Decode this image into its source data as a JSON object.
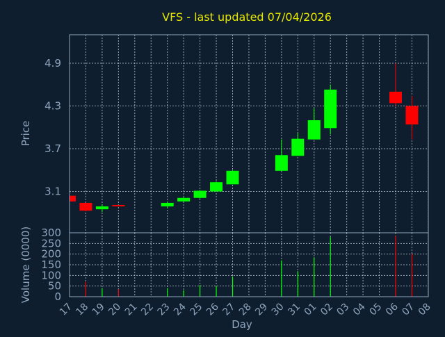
{
  "chart_data": {
    "type": "candlestick",
    "title": "VFS - last updated 07/04/2026",
    "xlabel": "Day",
    "price_panel": {
      "ylabel": "Price",
      "yticks": [
        "3.1",
        "3.7",
        "4.3",
        "4.9"
      ],
      "ylim": [
        2.52,
        5.3
      ],
      "grid": true
    },
    "volume_panel": {
      "ylabel": "Volume (0000)",
      "yticks": [
        "0",
        "50",
        "100",
        "150",
        "200",
        "250",
        "300"
      ],
      "ylim": [
        0,
        300
      ],
      "grid": true
    },
    "x_labels": [
      "17",
      "18",
      "19",
      "20",
      "21",
      "22",
      "23",
      "24",
      "25",
      "26",
      "27",
      "28",
      "29",
      "30",
      "31",
      "01",
      "02",
      "03",
      "04",
      "05",
      "06",
      "07",
      "08"
    ],
    "colors": {
      "up": "#00ff00",
      "down": "#ff0000"
    },
    "candles": [
      {
        "day": "17",
        "open": 3.04,
        "high": 3.04,
        "low": 2.96,
        "close": 2.96,
        "volume": 0
      },
      {
        "day": "18",
        "open": 2.94,
        "high": 2.94,
        "low": 2.82,
        "close": 2.83,
        "volume": 70
      },
      {
        "day": "19",
        "open": 2.85,
        "high": 2.92,
        "low": 2.81,
        "close": 2.89,
        "volume": 40
      },
      {
        "day": "20",
        "open": 2.91,
        "high": 2.91,
        "low": 2.89,
        "close": 2.9,
        "volume": 35
      },
      {
        "day": "23",
        "open": 2.89,
        "high": 2.96,
        "low": 2.87,
        "close": 2.94,
        "volume": 40
      },
      {
        "day": "24",
        "open": 2.96,
        "high": 3.02,
        "low": 2.96,
        "close": 3.01,
        "volume": 30
      },
      {
        "day": "25",
        "open": 3.01,
        "high": 3.12,
        "low": 3.0,
        "close": 3.11,
        "volume": 55
      },
      {
        "day": "26",
        "open": 3.1,
        "high": 3.24,
        "low": 3.1,
        "close": 3.23,
        "volume": 50
      },
      {
        "day": "27",
        "open": 3.2,
        "high": 3.4,
        "low": 3.2,
        "close": 3.39,
        "volume": 95
      },
      {
        "day": "30",
        "open": 3.39,
        "high": 3.83,
        "low": 3.39,
        "close": 3.61,
        "volume": 170
      },
      {
        "day": "31",
        "open": 3.6,
        "high": 3.92,
        "low": 3.6,
        "close": 3.84,
        "volume": 120
      },
      {
        "day": "01",
        "open": 3.83,
        "high": 4.27,
        "low": 3.83,
        "close": 4.1,
        "volume": 185
      },
      {
        "day": "02",
        "open": 3.99,
        "high": 4.6,
        "low": 3.9,
        "close": 4.53,
        "volume": 280
      },
      {
        "day": "06",
        "open": 4.5,
        "high": 4.9,
        "low": 4.3,
        "close": 4.34,
        "volume": 285
      },
      {
        "day": "07",
        "open": 4.3,
        "high": 4.44,
        "low": 3.83,
        "close": 4.04,
        "volume": 200
      }
    ]
  }
}
